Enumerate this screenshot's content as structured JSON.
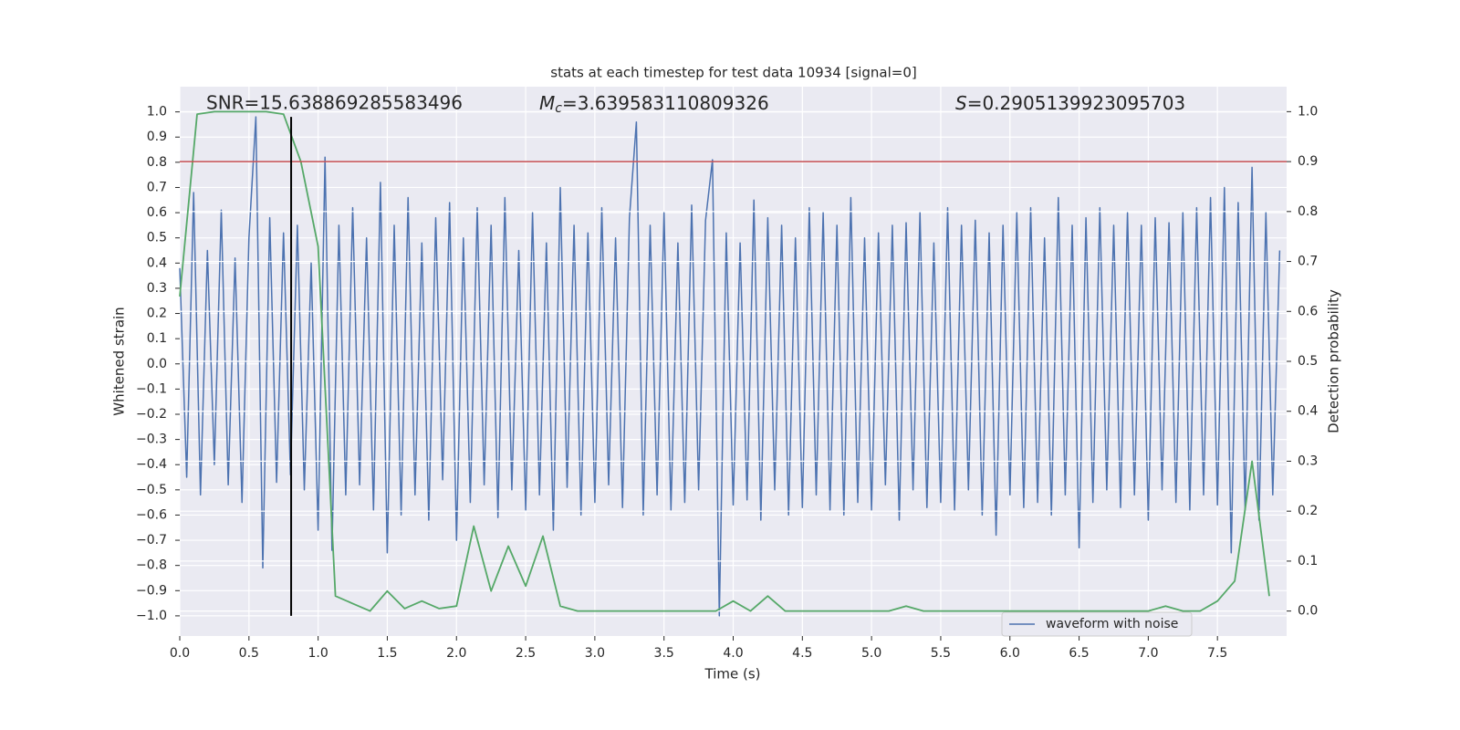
{
  "chart_data": {
    "type": "line",
    "title": "stats at each timestep for test data 10934 [signal=0]",
    "xlabel": "Time (s)",
    "ylabel": "Whitened strain",
    "y2label": "Detection probability",
    "annotations": [
      {
        "text": "SNR=15.638869285583496"
      },
      {
        "symbol": "M",
        "sub": "c",
        "text": "=3.639583110809326"
      },
      {
        "symbol": "S",
        "text": "=0.2905139923095703"
      }
    ],
    "xlim": [
      0,
      8.0
    ],
    "ylim": [
      -1.08,
      1.1
    ],
    "y2lim": [
      -0.05,
      1.05
    ],
    "xticks": [
      {
        "value": 0,
        "label": "0.0"
      },
      0.5,
      {
        "value": 1,
        "label": "1.0"
      },
      1.5,
      {
        "value": 2,
        "label": "2.0"
      },
      2.5,
      {
        "value": 3,
        "label": "3.0"
      },
      3.5,
      {
        "value": 4,
        "label": "4.0"
      },
      4.5,
      {
        "value": 5,
        "label": "5.0"
      },
      5.5,
      {
        "value": 6,
        "label": "6.0"
      },
      6.5,
      {
        "value": 7,
        "label": "7.0"
      },
      7.5
    ],
    "yticks": [
      {
        "value": 1,
        "label": "1.0"
      },
      0.9,
      0.8,
      0.7,
      0.6,
      0.5,
      0.4,
      0.3,
      0.2,
      0.1,
      {
        "value": 0,
        "label": "0.0"
      },
      {
        "value": -0.1,
        "label": "−0.1"
      },
      {
        "value": -0.2,
        "label": "−0.2"
      },
      {
        "value": -0.3,
        "label": "−0.3"
      },
      {
        "value": -0.4,
        "label": "−0.4"
      },
      {
        "value": -0.5,
        "label": "−0.5"
      },
      {
        "value": -0.6,
        "label": "−0.6"
      },
      {
        "value": -0.7,
        "label": "−0.7"
      },
      {
        "value": -0.8,
        "label": "−0.8"
      },
      {
        "value": -0.9,
        "label": "−0.9"
      },
      {
        "value": -1,
        "label": "−1.0"
      }
    ],
    "y2ticks": [
      {
        "value": 1,
        "label": "1.0"
      },
      0.9,
      0.8,
      0.7,
      0.6,
      0.5,
      0.4,
      0.3,
      0.2,
      0.1,
      {
        "value": 0,
        "label": "0.0"
      }
    ],
    "grid": true,
    "legend": "lower right",
    "threshold_y2": 0.9,
    "threshold_color": "#c44e52",
    "vline": {
      "x": 0.805,
      "ymin": -1.0,
      "ymax": 0.98,
      "color": "#000000"
    },
    "series": [
      {
        "name": "waveform with noise",
        "color": "#4c72b0",
        "x": [
          0,
          0.05,
          0.1,
          0.15,
          0.2,
          0.25,
          0.3,
          0.35,
          0.4,
          0.45,
          0.5,
          0.55,
          0.6,
          0.65,
          0.7,
          0.75,
          0.8,
          0.85,
          0.9,
          0.95,
          1,
          1.05,
          1.1,
          1.15,
          1.2,
          1.25,
          1.3,
          1.35,
          1.4,
          1.45,
          1.5,
          1.55,
          1.6,
          1.65,
          1.7,
          1.75,
          1.8,
          1.85,
          1.9,
          1.95,
          2,
          2.05,
          2.1,
          2.15,
          2.2,
          2.25,
          2.3,
          2.35,
          2.4,
          2.45,
          2.5,
          2.55,
          2.6,
          2.65,
          2.7,
          2.75,
          2.8,
          2.85,
          2.9,
          2.95,
          3,
          3.05,
          3.1,
          3.15,
          3.2,
          3.25,
          3.3,
          3.35,
          3.4,
          3.45,
          3.5,
          3.55,
          3.6,
          3.65,
          3.7,
          3.75,
          3.8,
          3.85,
          3.9,
          3.95,
          4,
          4.05,
          4.1,
          4.15,
          4.2,
          4.25,
          4.3,
          4.35,
          4.4,
          4.45,
          4.5,
          4.55,
          4.6,
          4.65,
          4.7,
          4.75,
          4.8,
          4.85,
          4.9,
          4.95,
          5,
          5.05,
          5.1,
          5.15,
          5.2,
          5.25,
          5.3,
          5.35,
          5.4,
          5.45,
          5.5,
          5.55,
          5.6,
          5.65,
          5.7,
          5.75,
          5.8,
          5.85,
          5.9,
          5.95,
          6,
          6.05,
          6.1,
          6.15,
          6.2,
          6.25,
          6.3,
          6.35,
          6.4,
          6.45,
          6.5,
          6.55,
          6.6,
          6.65,
          6.7,
          6.75,
          6.8,
          6.85,
          6.9,
          6.95,
          7,
          7.05,
          7.1,
          7.15,
          7.2,
          7.25,
          7.3,
          7.35,
          7.4,
          7.45,
          7.5,
          7.55,
          7.6,
          7.65,
          7.7,
          7.75,
          7.8,
          7.85,
          7.9,
          7.95
        ],
        "values": [
          0.38,
          -0.45,
          0.68,
          -0.52,
          0.45,
          -0.4,
          0.61,
          -0.48,
          0.42,
          -0.55,
          0.5,
          0.98,
          -0.81,
          0.58,
          -0.47,
          0.52,
          -0.44,
          0.55,
          -0.5,
          0.4,
          -0.66,
          0.82,
          -0.74,
          0.55,
          -0.52,
          0.62,
          -0.48,
          0.5,
          -0.58,
          0.72,
          -0.75,
          0.55,
          -0.6,
          0.66,
          -0.52,
          0.48,
          -0.62,
          0.58,
          -0.46,
          0.64,
          -0.7,
          0.5,
          -0.55,
          0.62,
          -0.48,
          0.55,
          -0.61,
          0.66,
          -0.5,
          0.45,
          -0.58,
          0.6,
          -0.52,
          0.48,
          -0.66,
          0.7,
          -0.49,
          0.55,
          -0.6,
          0.52,
          -0.55,
          0.62,
          -0.48,
          0.5,
          -0.57,
          0.58,
          0.96,
          -0.6,
          0.55,
          -0.52,
          0.6,
          -0.58,
          0.48,
          -0.55,
          0.63,
          -0.5,
          0.57,
          0.81,
          -1.0,
          0.52,
          -0.56,
          0.48,
          -0.54,
          0.65,
          -0.62,
          0.58,
          -0.5,
          0.55,
          -0.6,
          0.5,
          -0.57,
          0.62,
          -0.52,
          0.6,
          -0.58,
          0.55,
          -0.6,
          0.66,
          -0.55,
          0.5,
          -0.58,
          0.52,
          -0.48,
          0.55,
          -0.62,
          0.56,
          -0.5,
          0.6,
          -0.57,
          0.48,
          -0.55,
          0.62,
          -0.58,
          0.55,
          -0.5,
          0.57,
          -0.6,
          0.52,
          -0.68,
          0.55,
          -0.52,
          0.6,
          -0.57,
          0.62,
          -0.55,
          0.5,
          -0.6,
          0.66,
          -0.52,
          0.55,
          -0.73,
          0.58,
          -0.55,
          0.62,
          -0.5,
          0.55,
          -0.57,
          0.6,
          -0.52,
          0.55,
          -0.62,
          0.58,
          -0.5,
          0.56,
          -0.55,
          0.6,
          -0.58,
          0.62,
          -0.52,
          0.66,
          -0.56,
          0.7,
          -0.75,
          0.64,
          -0.58,
          0.78,
          -0.62,
          0.6,
          -0.52,
          0.45
        ]
      },
      {
        "color": "#55a868",
        "axis": "y2",
        "x": [
          0,
          0.125,
          0.25,
          0.375,
          0.5,
          0.625,
          0.75,
          0.875,
          1,
          1.125,
          1.25,
          1.375,
          1.5,
          1.625,
          1.75,
          1.875,
          2,
          2.125,
          2.25,
          2.375,
          2.5,
          2.625,
          2.75,
          2.875,
          3,
          3.125,
          3.25,
          3.375,
          3.5,
          3.625,
          3.75,
          3.875,
          4,
          4.125,
          4.25,
          4.375,
          4.5,
          4.625,
          4.75,
          4.875,
          5,
          5.125,
          5.25,
          5.375,
          5.5,
          5.625,
          5.75,
          5.875,
          6,
          6.125,
          6.25,
          6.375,
          6.5,
          6.625,
          6.75,
          6.875,
          7,
          7.125,
          7.25,
          7.375,
          7.5,
          7.625,
          7.75,
          7.875
        ],
        "values": [
          0.63,
          0.995,
          1.0,
          1.0,
          1.0,
          1.0,
          0.995,
          0.9,
          0.73,
          0.03,
          0.015,
          0.0,
          0.04,
          0.005,
          0.02,
          0.005,
          0.01,
          0.17,
          0.04,
          0.13,
          0.05,
          0.15,
          0.01,
          0.0,
          0.0,
          0.0,
          0.0,
          0.0,
          0.0,
          0.0,
          0.0,
          0.0,
          0.02,
          0.0,
          0.03,
          0.0,
          0.0,
          0.0,
          0.0,
          0.0,
          0.0,
          0.0,
          0.01,
          0.0,
          0.0,
          0.0,
          0.0,
          0.0,
          0.0,
          0.0,
          0.0,
          0.0,
          0.0,
          0.0,
          0.0,
          0.0,
          0.0,
          0.01,
          0.0,
          0.0,
          0.02,
          0.06,
          0.3,
          0.03
        ]
      }
    ]
  }
}
